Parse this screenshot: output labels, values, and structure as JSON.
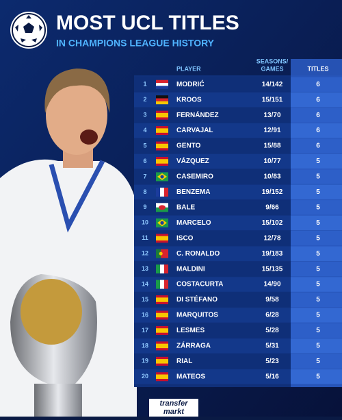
{
  "header": {
    "title": "MOST UCL TITLES",
    "subtitle": "IN CHAMPIONS LEAGUE HISTORY"
  },
  "table": {
    "columns": [
      "PLAYER",
      "SEASONS/",
      "GAMES",
      "TITLES"
    ],
    "rows": [
      [
        1,
        "MODRIĆ",
        "14/142",
        6
      ],
      [
        2,
        "KROOS",
        "15/151",
        6
      ],
      [
        3,
        "FERNÁNDEZ",
        "13/70",
        6
      ],
      [
        4,
        "CARVAJAL",
        "12/91",
        6
      ],
      [
        5,
        "GENTO",
        "15/88",
        6
      ],
      [
        6,
        "VÁZQUEZ",
        "10/77",
        5
      ],
      [
        7,
        "CASEMIRO",
        "10/83",
        5
      ],
      [
        8,
        "BENZEMA",
        "19/152",
        5
      ],
      [
        9,
        "BALE",
        "9/66",
        5
      ],
      [
        10,
        "MARCELO",
        "15/102",
        5
      ],
      [
        11,
        "ISCO",
        "12/78",
        5
      ],
      [
        12,
        "C. RONALDO",
        "19/183",
        5
      ],
      [
        13,
        "MALDINI",
        "15/135",
        5
      ],
      [
        14,
        "COSTACURTA",
        "14/90",
        5
      ],
      [
        15,
        "DI STÉFANO",
        "9/58",
        5
      ],
      [
        16,
        "MARQUITOS",
        "6/28",
        5
      ],
      [
        17,
        "LESMES",
        "5/28",
        5
      ],
      [
        18,
        "ZÁRRAGA",
        "5/31",
        5
      ],
      [
        19,
        "RIAL",
        "5/23",
        5
      ],
      [
        20,
        "MATEOS",
        "5/16",
        5
      ]
    ]
  },
  "footer": {
    "logo_top": "transfer",
    "logo_bottom": "markt"
  }
}
